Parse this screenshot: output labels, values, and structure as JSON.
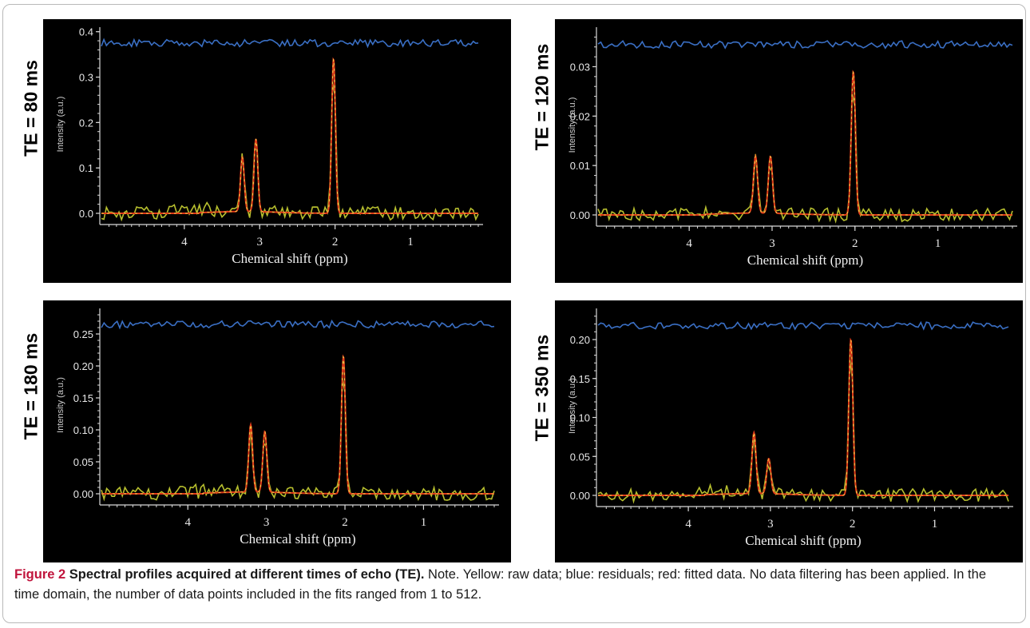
{
  "caption": {
    "figure_label": "Figure 2",
    "title": "Spectral profiles acquired at different times of echo (TE).",
    "text": "Note. Yellow: raw data; blue: residuals; red: fitted data. No data filtering has been applied. In the time domain, the number of data points included in the fits ranged from 1 to 512."
  },
  "colors": {
    "raw": "#b7bf2e",
    "residual": "#3a6fc4",
    "fit": "#e03a1a",
    "background": "#000000",
    "axis": "#d8d8d8"
  },
  "chart_data": [
    {
      "type": "line",
      "panel_label": "TE = 80 ms",
      "xlabel": "Chemical shift (ppm)",
      "ylabel": "Intensity (a.u.)",
      "x_ticks": [
        "4",
        "3",
        "2",
        "1"
      ],
      "y_ticks": [
        "0.0",
        "0.1",
        "0.2",
        "0.3",
        "0.4"
      ],
      "xlim": [
        5.1,
        0.1
      ],
      "ylim": [
        -0.01,
        0.41
      ],
      "residual_level": 0.375,
      "peaks": [
        {
          "ppm": 3.23,
          "height": 0.12
        },
        {
          "ppm": 3.05,
          "height": 0.16
        },
        {
          "ppm": 2.02,
          "height": 0.34
        }
      ],
      "series": [
        {
          "name": "raw data"
        },
        {
          "name": "residuals"
        },
        {
          "name": "fitted data"
        }
      ]
    },
    {
      "type": "line",
      "panel_label": "TE = 120 ms",
      "xlabel": "Chemical shift (ppm)",
      "ylabel": "Intensity (a.u.)",
      "x_ticks": [
        "4",
        "3",
        "2",
        "1"
      ],
      "y_ticks": [
        "0.00",
        "0.01",
        "0.02",
        "0.03"
      ],
      "xlim": [
        5.1,
        0.1
      ],
      "ylim": [
        -0.002,
        0.038
      ],
      "residual_level": 0.0345,
      "peaks": [
        {
          "ppm": 3.2,
          "height": 0.0115
        },
        {
          "ppm": 3.02,
          "height": 0.0115
        },
        {
          "ppm": 2.02,
          "height": 0.029
        }
      ],
      "series": [
        {
          "name": "raw data"
        },
        {
          "name": "residuals"
        },
        {
          "name": "fitted data"
        }
      ]
    },
    {
      "type": "line",
      "panel_label": "TE = 180 ms",
      "xlabel": "Chemical shift (ppm)",
      "ylabel": "Intensity (a.u.)",
      "x_ticks": [
        "4",
        "3",
        "2",
        "1"
      ],
      "y_ticks": [
        "0.00",
        "0.05",
        "0.10",
        "0.15",
        "0.20",
        "0.25"
      ],
      "xlim": [
        5.1,
        0.1
      ],
      "ylim": [
        -0.01,
        0.29
      ],
      "residual_level": 0.265,
      "peaks": [
        {
          "ppm": 3.2,
          "height": 0.105
        },
        {
          "ppm": 3.02,
          "height": 0.095
        },
        {
          "ppm": 2.02,
          "height": 0.215
        }
      ],
      "series": [
        {
          "name": "raw data"
        },
        {
          "name": "residuals"
        },
        {
          "name": "fitted data"
        }
      ]
    },
    {
      "type": "line",
      "panel_label": "TE = 350 ms",
      "xlabel": "Chemical shift (ppm)",
      "ylabel": "Intensity (a.u.)",
      "x_ticks": [
        "4",
        "3",
        "2",
        "1"
      ],
      "y_ticks": [
        "0.00",
        "0.05",
        "0.10",
        "0.15",
        "0.20"
      ],
      "xlim": [
        5.1,
        0.1
      ],
      "ylim": [
        -0.01,
        0.24
      ],
      "residual_level": 0.218,
      "peaks": [
        {
          "ppm": 3.2,
          "height": 0.078
        },
        {
          "ppm": 3.02,
          "height": 0.045
        },
        {
          "ppm": 2.02,
          "height": 0.2
        }
      ],
      "series": [
        {
          "name": "raw data"
        },
        {
          "name": "residuals"
        },
        {
          "name": "fitted data"
        }
      ]
    }
  ]
}
